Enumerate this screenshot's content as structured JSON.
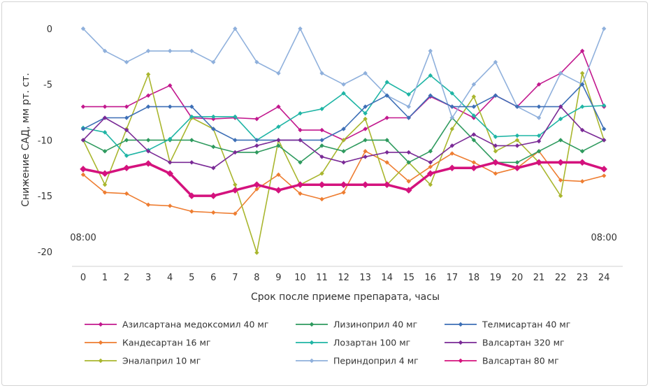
{
  "chart_data": {
    "type": "line",
    "title": "",
    "xlabel": "Срок после приеме препарата, часы",
    "ylabel": "Снижение САД, мм рт. ст.",
    "ylim": [
      -21,
      0.5
    ],
    "yticks": [
      0,
      -5,
      -10,
      -15,
      -20
    ],
    "x": [
      0,
      1,
      2,
      3,
      4,
      5,
      6,
      7,
      8,
      9,
      10,
      11,
      12,
      13,
      14,
      15,
      16,
      17,
      18,
      19,
      20,
      21,
      22,
      23,
      24
    ],
    "annotations": [
      {
        "text": "08:00",
        "x": 0,
        "y": -19
      },
      {
        "text": "08:00",
        "x": 24,
        "y": -19
      }
    ],
    "grid": false,
    "legend_position": "bottom",
    "series": [
      {
        "name": "Азилсартана медоксомил 40 мг",
        "color": "#c2188e",
        "bold": false,
        "values": [
          -7,
          -7,
          -7,
          -6,
          -5.1,
          -8,
          -8.1,
          -8,
          -8.1,
          -7,
          -9.1,
          -9.1,
          -10,
          -9,
          -8,
          -8,
          -6.1,
          -7,
          -8,
          -6,
          -7,
          -5,
          -4,
          -2,
          -7
        ]
      },
      {
        "name": "Кандесартан 16 мг",
        "color": "#ee7d31",
        "bold": false,
        "values": [
          -13.1,
          -14.7,
          -14.8,
          -15.8,
          -15.9,
          -16.4,
          -16.5,
          -16.6,
          -14.4,
          -13.1,
          -14.8,
          -15.3,
          -14.7,
          -11,
          -12,
          -13.7,
          -12.4,
          -11.2,
          -12,
          -13,
          -12.5,
          -11,
          -13.6,
          -13.7,
          -13.2
        ]
      },
      {
        "name": "Эналаприл 10 мг",
        "color": "#a9b62e",
        "bold": false,
        "values": [
          -10,
          -14,
          -9,
          -4.1,
          -12,
          -8,
          -9,
          -14,
          -20.1,
          -10,
          -14,
          -13,
          -10,
          -8.1,
          -14,
          -12,
          -14,
          -9,
          -6.1,
          -11,
          -10,
          -12,
          -15,
          -4,
          -10
        ]
      },
      {
        "name": "Лизиноприл 40 мг",
        "color": "#2e9a5e",
        "bold": false,
        "values": [
          -10,
          -11,
          -10,
          -10,
          -10,
          -10,
          -10.6,
          -11.1,
          -11.1,
          -10.5,
          -12,
          -10.5,
          -11,
          -10,
          -10,
          -12,
          -11,
          -8,
          -10,
          -12,
          -12,
          -11,
          -10,
          -11,
          -10
        ]
      },
      {
        "name": "Лозартан 100 мг",
        "color": "#1fb5a5",
        "bold": false,
        "values": [
          -8.9,
          -9.3,
          -11.4,
          -10.9,
          -9.9,
          -7.9,
          -7.9,
          -7.9,
          -10,
          -8.8,
          -7.6,
          -7.2,
          -5.8,
          -7.6,
          -4.8,
          -5.9,
          -4.2,
          -5.8,
          -7.8,
          -9.7,
          -9.6,
          -9.6,
          -8.1,
          -7,
          -6.9
        ]
      },
      {
        "name": "Периндоприл 4 мг",
        "color": "#8fb0dc",
        "bold": false,
        "values": [
          0,
          -2,
          -3,
          -2,
          -2,
          -2,
          -3,
          0,
          -3,
          -4,
          0,
          -4,
          -5,
          -4,
          -6,
          -7,
          -2,
          -8,
          -5,
          -3,
          -7,
          -8,
          -4,
          -5,
          0
        ]
      },
      {
        "name": "Телмисартан 40 мг",
        "color": "#3d6fb6",
        "bold": false,
        "values": [
          -9,
          -8,
          -8,
          -7,
          -7,
          -7,
          -9,
          -10,
          -10,
          -10,
          -10,
          -10,
          -9,
          -7,
          -6,
          -8,
          -6,
          -7,
          -7,
          -6,
          -7,
          -7,
          -7,
          -5,
          -9
        ]
      },
      {
        "name": "Валсартан 320 мг",
        "color": "#7a2a96",
        "bold": false,
        "values": [
          -10,
          -8,
          -9.1,
          -11,
          -12,
          -12,
          -12.5,
          -11.1,
          -10.5,
          -10,
          -10,
          -11.5,
          -12,
          -11.5,
          -11.1,
          -11.1,
          -12,
          -10.5,
          -9.5,
          -10.5,
          -10.5,
          -10.1,
          -7,
          -9.1,
          -10
        ]
      },
      {
        "name": "Валсартан 80 мг",
        "color": "#d4127d",
        "bold": true,
        "values": [
          -12.6,
          -13,
          -12.5,
          -12.1,
          -13,
          -15,
          -15,
          -14.5,
          -14,
          -14.5,
          -14,
          -14,
          -14,
          -14,
          -14,
          -14.5,
          -13,
          -12.5,
          -12.5,
          -12,
          -12.5,
          -12,
          -12,
          -12,
          -12.6
        ]
      }
    ]
  }
}
